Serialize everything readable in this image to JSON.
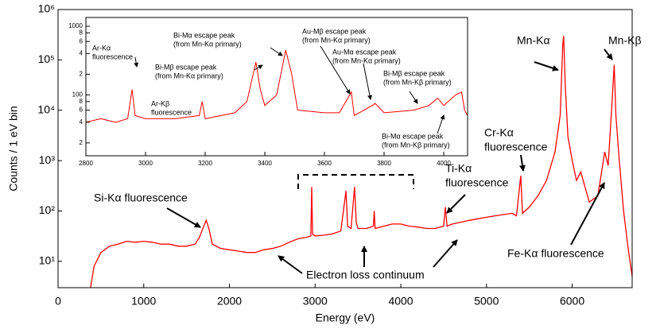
{
  "chart_data": [
    {
      "type": "line",
      "xlabel": "Energy (eV)",
      "ylabel": "Counts / 1 eV bin",
      "log_scale": true,
      "color": "#ff0000",
      "xlim": [
        0,
        6700
      ],
      "ylim": [
        3,
        1000000
      ],
      "xticks": [
        0,
        1000,
        2000,
        3000,
        4000,
        5000,
        6000
      ],
      "yticks": [
        {
          "value": 10,
          "label": "10¹"
        },
        {
          "value": 100,
          "label": "10²"
        },
        {
          "value": 1000,
          "label": "10³"
        },
        {
          "value": 10000,
          "label": "10⁴"
        },
        {
          "value": 100000,
          "label": "10⁵"
        },
        {
          "value": 1000000,
          "label": "10⁶"
        }
      ],
      "x": [
        380,
        420,
        500,
        600,
        700,
        800,
        900,
        1000,
        1100,
        1200,
        1300,
        1400,
        1500,
        1600,
        1650,
        1700,
        1730,
        1760,
        1800,
        1900,
        2000,
        2100,
        2200,
        2300,
        2400,
        2500,
        2600,
        2700,
        2800,
        2900,
        2950,
        2960,
        2970,
        3000,
        3100,
        3200,
        3300,
        3360,
        3380,
        3420,
        3460,
        3480,
        3500,
        3600,
        3680,
        3690,
        3700,
        3800,
        3900,
        4000,
        4100,
        4200,
        4300,
        4400,
        4500,
        4520,
        4540,
        4600,
        4700,
        4800,
        4900,
        5000,
        5100,
        5200,
        5300,
        5350,
        5400,
        5420,
        5500,
        5600,
        5700,
        5800,
        5860,
        5890,
        5900,
        5920,
        5950,
        6000,
        6050,
        6100,
        6150,
        6200,
        6300,
        6380,
        6420,
        6460,
        6490,
        6510,
        6550,
        6600,
        6650,
        6700
      ],
      "values": [
        3,
        8,
        15,
        20,
        22,
        25,
        24,
        25,
        24,
        22,
        22,
        20,
        20,
        22,
        30,
        50,
        65,
        45,
        22,
        18,
        17,
        16,
        15,
        15,
        17,
        18,
        20,
        24,
        28,
        30,
        32,
        300,
        35,
        32,
        33,
        35,
        40,
        250,
        50,
        45,
        300,
        60,
        45,
        45,
        50,
        100,
        45,
        50,
        55,
        55,
        50,
        48,
        45,
        45,
        50,
        120,
        50,
        55,
        60,
        65,
        70,
        75,
        80,
        85,
        90,
        80,
        500,
        90,
        120,
        200,
        400,
        1500,
        8000,
        200000,
        300000,
        30000,
        3000,
        1000,
        400,
        600,
        300,
        150,
        200,
        1500,
        800,
        10000,
        80000,
        8000,
        1000,
        100,
        20,
        5
      ],
      "annotations": [
        [
          "Mn-Kα"
        ],
        [
          "Mn-Kβ"
        ],
        [
          "Cr-Kα",
          "fluorescence"
        ],
        [
          "Ti-Kα",
          "fluorescence"
        ],
        [
          "Si-Kα fluorescence"
        ],
        [
          "Fe-Kα fluorescence"
        ],
        [
          "Electron loss continuum"
        ]
      ]
    },
    {
      "type": "line",
      "log_scale": true,
      "color": "#ff0000",
      "xlim": [
        2800,
        4080
      ],
      "ylim": [
        13,
        1340
      ],
      "xticks": [
        2800,
        3000,
        3200,
        3400,
        3600,
        3800,
        4000
      ],
      "yticks": [
        {
          "value": 20,
          "label": "2"
        },
        {
          "value": 40,
          "label": "4"
        },
        {
          "value": 60,
          "label": "6"
        },
        {
          "value": 80,
          "label": "8"
        },
        100,
        {
          "value": 200,
          "label": "2"
        },
        {
          "value": 400,
          "label": "4"
        },
        {
          "value": 600,
          "label": "6"
        },
        {
          "value": 800,
          "label": "8"
        },
        1000
      ],
      "x": [
        2800,
        2850,
        2900,
        2940,
        2955,
        2965,
        3000,
        3100,
        3180,
        3190,
        3200,
        3300,
        3340,
        3370,
        3385,
        3400,
        3440,
        3470,
        3490,
        3510,
        3600,
        3650,
        3690,
        3700,
        3760,
        3770,
        3800,
        3900,
        3950,
        3980,
        4000,
        4040,
        4060,
        4070,
        4080
      ],
      "values": [
        40,
        45,
        40,
        45,
        120,
        50,
        45,
        45,
        50,
        80,
        45,
        55,
        80,
        300,
        120,
        70,
        100,
        450,
        200,
        60,
        55,
        55,
        110,
        50,
        70,
        75,
        55,
        60,
        70,
        90,
        70,
        100,
        110,
        60,
        50
      ],
      "annotations": [
        [
          "Ar-Kα",
          "fluorescence"
        ],
        [
          "Ar-Kβ",
          "fluorescence"
        ],
        [
          "Bi-Mβ escape peak",
          "(from Mn-Kα primary)"
        ],
        [
          "Bi-Mα escape peak",
          "(from Mn-Kα primary)"
        ],
        [
          "Au-Mβ escape peak",
          "(from Mn-Kα primary)"
        ],
        [
          "Au-Mα escape peak",
          "(from Mn-Kα primary)"
        ],
        [
          "Bi-Mβ escape peak",
          "(from Mn-Kβ primary)"
        ],
        [
          "Bi-Mα escape peak",
          "(from Mn-Kβ primary)"
        ]
      ]
    }
  ]
}
